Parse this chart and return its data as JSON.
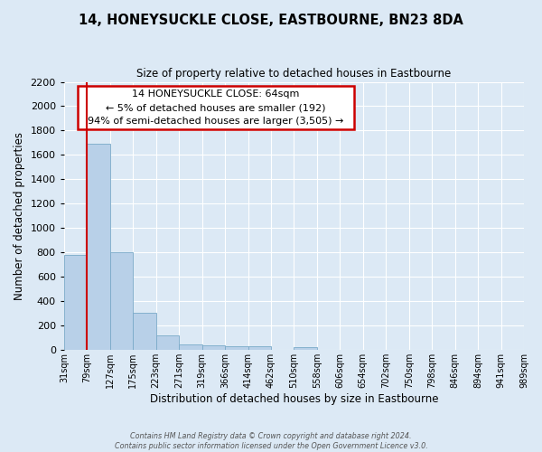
{
  "title": "14, HONEYSUCKLE CLOSE, EASTBOURNE, BN23 8DA",
  "subtitle": "Size of property relative to detached houses in Eastbourne",
  "xlabel": "Distribution of detached houses by size in Eastbourne",
  "ylabel": "Number of detached properties",
  "footer_line1": "Contains HM Land Registry data © Crown copyright and database right 2024.",
  "footer_line2": "Contains public sector information licensed under the Open Government Licence v3.0.",
  "bar_values": [
    780,
    1690,
    800,
    300,
    115,
    40,
    35,
    30,
    25,
    0,
    20,
    0,
    0,
    0,
    0,
    0,
    0,
    0,
    0,
    0
  ],
  "bin_labels": [
    "31sqm",
    "79sqm",
    "127sqm",
    "175sqm",
    "223sqm",
    "271sqm",
    "319sqm",
    "366sqm",
    "414sqm",
    "462sqm",
    "510sqm",
    "558sqm",
    "606sqm",
    "654sqm",
    "702sqm",
    "750sqm",
    "798sqm",
    "846sqm",
    "894sqm",
    "941sqm",
    "989sqm"
  ],
  "ylim": [
    0,
    2200
  ],
  "yticks": [
    0,
    200,
    400,
    600,
    800,
    1000,
    1200,
    1400,
    1600,
    1800,
    2000,
    2200
  ],
  "bar_color": "#b8d0e8",
  "bar_edge_color": "#7aaac8",
  "marker_line_color": "#cc0000",
  "annotation_title": "14 HONEYSUCKLE CLOSE: 64sqm",
  "annotation_line2": "← 5% of detached houses are smaller (192)",
  "annotation_line3": "94% of semi-detached houses are larger (3,505) →",
  "annotation_box_color": "#ffffff",
  "annotation_border_color": "#cc0000",
  "bg_color": "#dce9f5",
  "plot_bg_color": "#dce9f5",
  "grid_color": "#ffffff"
}
